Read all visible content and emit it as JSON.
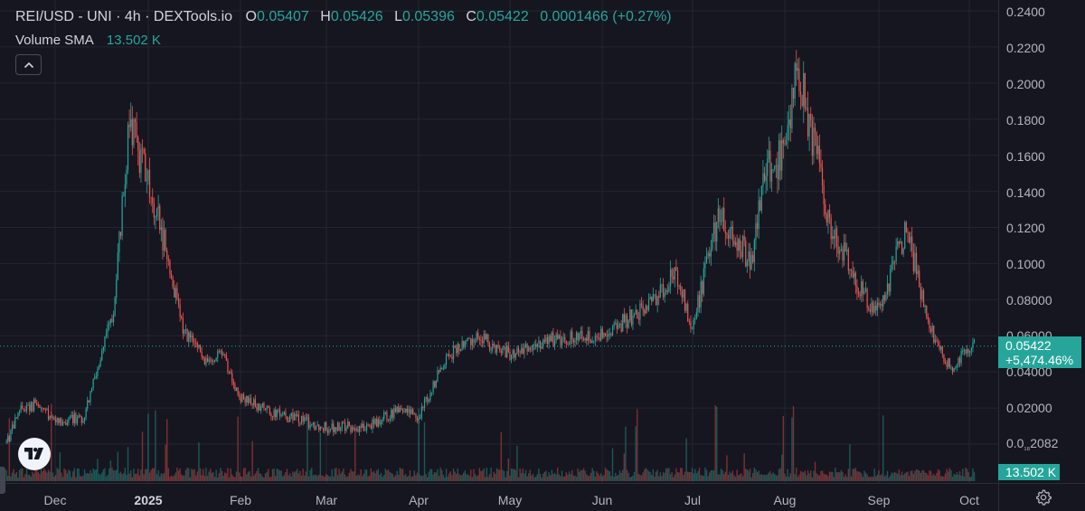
{
  "legend": {
    "title": "REI/USD - UNI · 4h · DEXTools.io",
    "open_key": "O",
    "open": "0.05407",
    "high_key": "H",
    "high": "0.05426",
    "low_key": "L",
    "low": "0.05396",
    "close_key": "C",
    "close": "0.05422",
    "change": "0.0001466 (+0.27%)",
    "volume_label": "Volume SMA",
    "volume_value": "13.502 K"
  },
  "price_axis": {
    "ticks": [
      "0.2400",
      "0.2200",
      "0.2000",
      "0.1800",
      "0.1600",
      "0.1400",
      "0.1200",
      "0.1000",
      "0.08000",
      "0.06000",
      "0.04000",
      "0.02000"
    ],
    "zero_tick_prefix": "0.0",
    "zero_tick_sub": "₁₈",
    "zero_tick_suffix": "2082",
    "last_price": "0.05422",
    "last_change": "+5,474.46%",
    "volume_tag": "13.502 K"
  },
  "time_axis": {
    "labels": [
      "Dec",
      "2025",
      "Feb",
      "Mar",
      "Apr",
      "May",
      "Jun",
      "Jul",
      "Aug",
      "Sep",
      "Oct"
    ]
  },
  "colors": {
    "background": "#161620",
    "up": "#26a69a",
    "down": "#ef5350",
    "grid": "#22252f",
    "axis_text": "#b2b5be"
  },
  "icons": {
    "collapse": "chevron-up-icon",
    "logo": "tradingview-logo-icon",
    "settings": "gear-icon"
  },
  "chart_data": {
    "type": "candlestick",
    "pair": "REI/USD",
    "timeframe": "4h",
    "ylim": [
      0,
      0.24
    ],
    "y_scale": "linear",
    "grid": true,
    "last_close": 0.05422,
    "trend_x": [
      "Nov 15",
      "Nov 20",
      "Nov 25",
      "Dec 1",
      "Dec 10",
      "Dec 20",
      "Dec 25",
      "Jan 5",
      "Jan 12",
      "Jan 20",
      "Jan 25",
      "Feb 1",
      "Feb 15",
      "Mar 1",
      "Mar 15",
      "Mar 25",
      "Apr 1",
      "Apr 10",
      "Apr 20",
      "May 1",
      "May 15",
      "Jun 1",
      "Jun 15",
      "Jun 25",
      "Jul 1",
      "Jul 10",
      "Jul 20",
      "Jul 25",
      "Aug 1",
      "Aug 5",
      "Aug 10",
      "Aug 15",
      "Aug 25",
      "Sep 1",
      "Sep 10",
      "Sep 15",
      "Sep 20",
      "Sep 25",
      "Oct 1",
      "Oct 3"
    ],
    "trend_y": [
      0.001,
      0.02,
      0.022,
      0.013,
      0.015,
      0.075,
      0.18,
      0.12,
      0.065,
      0.045,
      0.05,
      0.025,
      0.016,
      0.009,
      0.01,
      0.02,
      0.015,
      0.048,
      0.06,
      0.05,
      0.058,
      0.06,
      0.075,
      0.095,
      0.065,
      0.13,
      0.1,
      0.155,
      0.16,
      0.21,
      0.17,
      0.125,
      0.085,
      0.072,
      0.12,
      0.085,
      0.055,
      0.042,
      0.055,
      0.054
    ]
  }
}
